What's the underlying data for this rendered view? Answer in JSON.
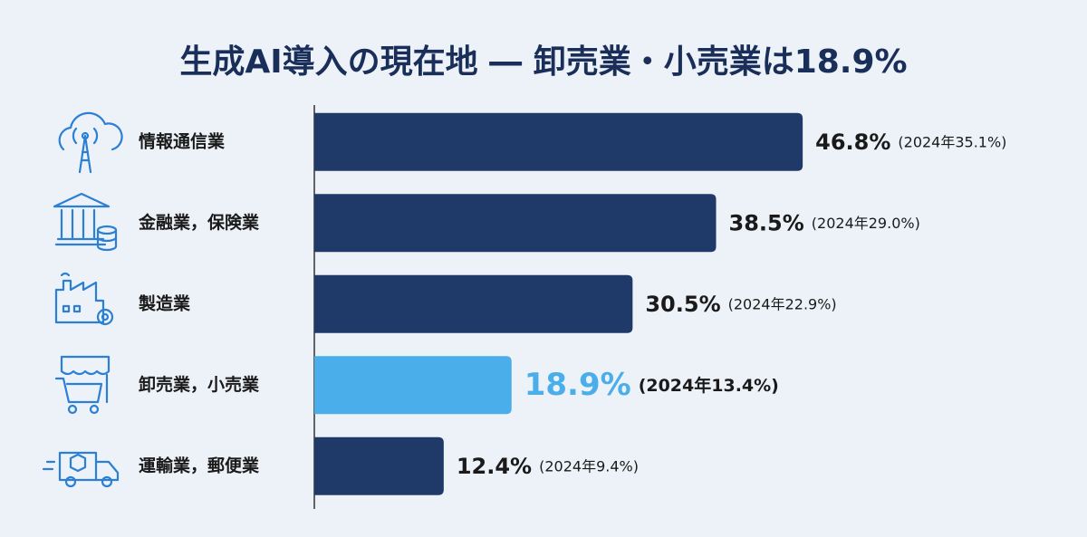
{
  "chart_data": {
    "type": "hbar",
    "title": "生成AI導入の現在地 ― 卸売業・小売業は18.9%",
    "categories": [
      "情報通信業",
      "金融業，保険業",
      "製造業",
      "卸売業，小売業",
      "運輸業，郵便業"
    ],
    "values": [
      46.8,
      38.5,
      30.5,
      18.9,
      12.4
    ],
    "value_labels": [
      "46.8%",
      "38.5%",
      "30.5%",
      "18.9%",
      "12.4%"
    ],
    "comparison_labels": [
      "(2024年35.1%)",
      "(2024年29.0%)",
      "(2024年22.9%)",
      "(2024年13.4%)",
      "(2024年9.4%)"
    ],
    "colors": [
      "#1f3a68",
      "#1f3a68",
      "#1f3a68",
      "#4aaeea",
      "#1f3a68"
    ],
    "highlight": 3,
    "xlim": [
      0,
      50
    ]
  }
}
